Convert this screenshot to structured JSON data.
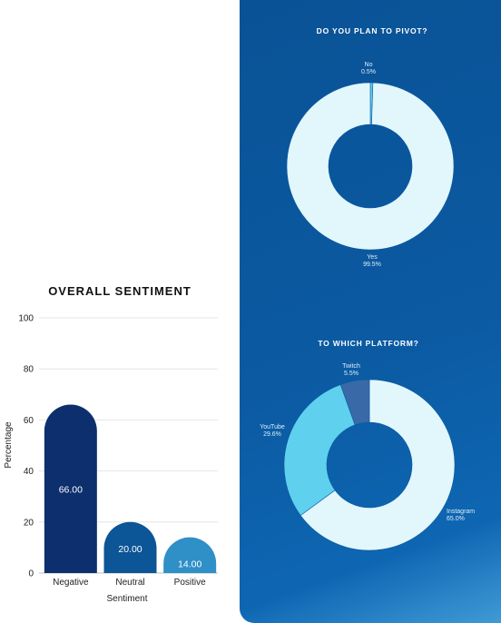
{
  "chart_data": [
    {
      "type": "bar",
      "title": "OVERALL SENTIMENT",
      "xlabel": "Sentiment",
      "ylabel": "Percentage",
      "ylim": [
        0,
        100
      ],
      "yticks": [
        "0",
        "20",
        "40",
        "60",
        "80",
        "100"
      ],
      "categories": [
        "Negative",
        "Neutral",
        "Positive"
      ],
      "values": [
        66,
        20,
        14
      ],
      "value_labels": [
        "66.00",
        "20.00",
        "14.00"
      ],
      "colors": [
        "#0d2f6e",
        "#0c5596",
        "#2f8fc7"
      ],
      "grid": true
    },
    {
      "type": "pie",
      "style": "donut",
      "title": "DO YOU PLAN TO PIVOT?",
      "slices": [
        {
          "label": "No",
          "value": 0.5,
          "value_label": "0.5%",
          "color": "#5fd0ee"
        },
        {
          "label": "Yes",
          "value": 99.5,
          "value_label": "99.5%",
          "color": "#e2f7fc"
        }
      ]
    },
    {
      "type": "pie",
      "style": "donut",
      "title": "TO WHICH PLATFORM?",
      "slices": [
        {
          "label": "Instagram",
          "value": 65.0,
          "value_label": "65.0%",
          "color": "#e2f7fc"
        },
        {
          "label": "YouTube",
          "value": 29.6,
          "value_label": "29.6%",
          "color": "#5fd0ee"
        },
        {
          "label": "Twitch",
          "value": 5.5,
          "value_label": "5.5%",
          "color": "#3a69a8"
        }
      ]
    }
  ]
}
